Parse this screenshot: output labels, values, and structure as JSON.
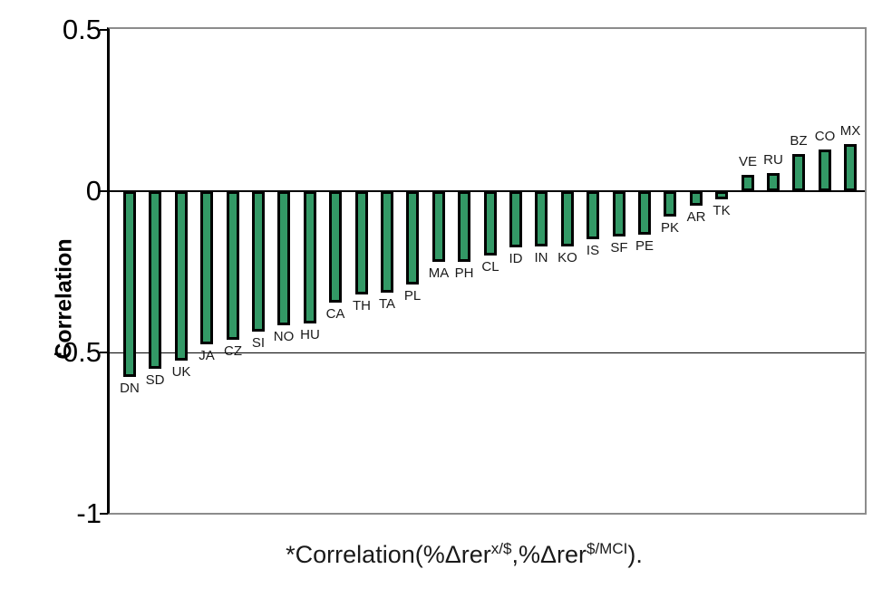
{
  "chart_data": {
    "type": "bar",
    "title": "",
    "ylabel": "Correlation",
    "xlabel": "",
    "caption": {
      "part1": "*Correlation(%Δrer",
      "sup1": "x/$",
      "part2": ",%Δrer",
      "sup2": "$/MCI",
      "part3": ")."
    },
    "categories": [
      "DN",
      "SD",
      "UK",
      "JA",
      "CZ",
      "SI",
      "NO",
      "HU",
      "CA",
      "TH",
      "TA",
      "PL",
      "MA",
      "PH",
      "CL",
      "ID",
      "IN",
      "KO",
      "IS",
      "SF",
      "PE",
      "PK",
      "AR",
      "TK",
      "VE",
      "RU",
      "BZ",
      "CO",
      "MX"
    ],
    "values": [
      -0.575,
      -0.55,
      -0.525,
      -0.475,
      -0.46,
      -0.435,
      -0.415,
      -0.41,
      -0.345,
      -0.32,
      -0.315,
      -0.29,
      -0.22,
      -0.22,
      -0.2,
      -0.175,
      -0.17,
      -0.17,
      -0.15,
      -0.14,
      -0.135,
      -0.08,
      -0.045,
      -0.025,
      0.05,
      0.055,
      0.115,
      0.13,
      0.145
    ],
    "ylim": [
      -1,
      0.5
    ],
    "y_ticks": [
      {
        "label": "0.5",
        "value": 0.5
      },
      {
        "label": "0",
        "value": 0
      },
      {
        "label": "-0.5",
        "value": -0.5
      },
      {
        "label": "-1",
        "value": -1
      }
    ],
    "grid_line_values": [
      0,
      -0.5
    ],
    "legend": "none",
    "bar_color": "#339966",
    "bar_border_color": "#000000",
    "axis_color": "#000000",
    "frame_color": "#8c8c8c"
  }
}
